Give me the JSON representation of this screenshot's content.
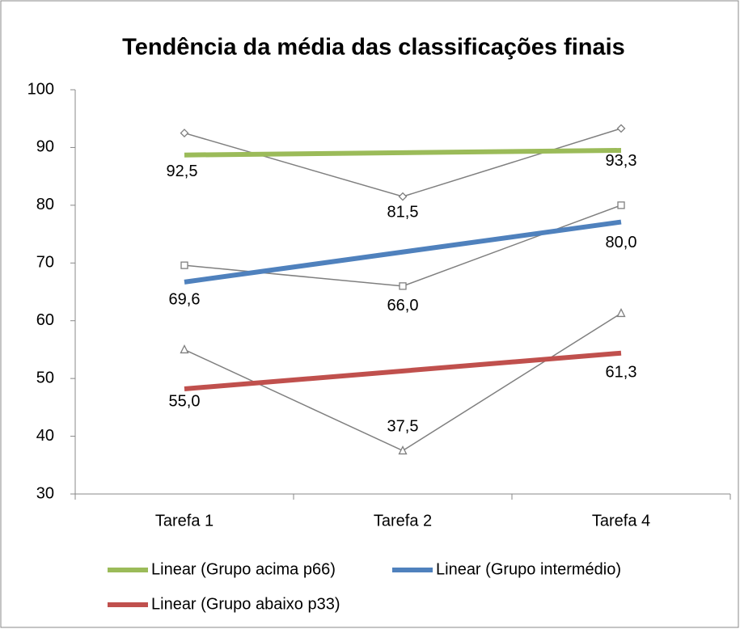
{
  "chart_data": {
    "type": "line",
    "title": "Tendência da média das classificações finais",
    "categories": [
      "Tarefa 1",
      "Tarefa 2",
      "Tarefa 4"
    ],
    "series": [
      {
        "name": "Linear (Grupo acima p66)",
        "color": "#9bbb59",
        "line_color": "#7f7f7f",
        "marker": "diamond",
        "values": [
          92.5,
          81.5,
          93.3
        ],
        "value_labels": [
          "92,5",
          "81,5",
          "93,3"
        ],
        "trend": [
          88.7,
          89.5
        ]
      },
      {
        "name": "Linear (Grupo intermédio)",
        "color": "#4f81bd",
        "line_color": "#7f7f7f",
        "marker": "square",
        "values": [
          69.6,
          66.0,
          80.0
        ],
        "value_labels": [
          "69,6",
          "66,0",
          "80,0"
        ],
        "trend": [
          66.7,
          77.1
        ]
      },
      {
        "name": "Linear (Grupo abaixo p33)",
        "color": "#c0504d",
        "line_color": "#7f7f7f",
        "marker": "triangle",
        "values": [
          55.0,
          37.5,
          61.3
        ],
        "value_labels": [
          "55,0",
          "37,5",
          "61,3"
        ],
        "trend": [
          48.2,
          54.4
        ]
      }
    ],
    "ylim": [
      30,
      100
    ],
    "yticks": [
      30,
      40,
      50,
      60,
      70,
      80,
      90,
      100
    ],
    "grid": false,
    "legend": "bottom"
  }
}
